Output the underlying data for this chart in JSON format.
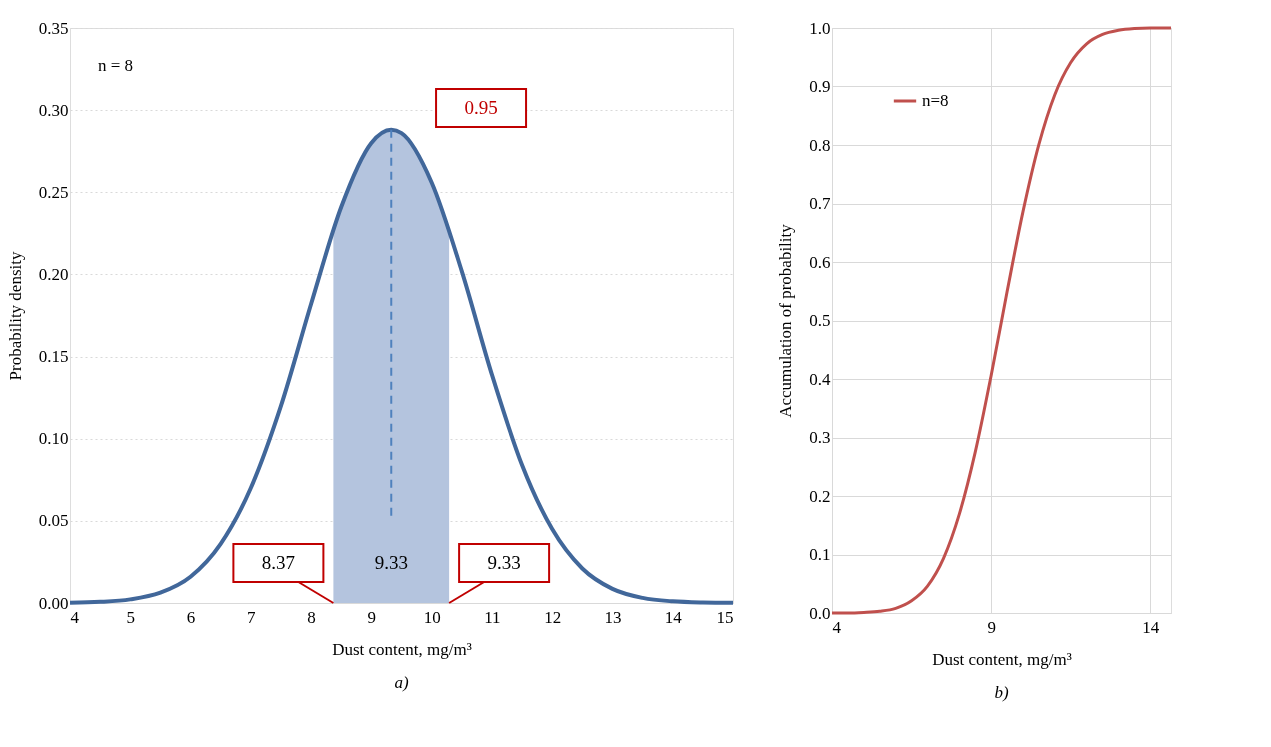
{
  "chart_data": [
    {
      "type": "line",
      "xlabel": "Dust content, mg/m³",
      "ylabel": "Probability density",
      "x": [
        4,
        4.5,
        5,
        5.5,
        6,
        6.5,
        7,
        7.5,
        8,
        8.5,
        9,
        9.33,
        9.5,
        10,
        10.5,
        11,
        11.5,
        12,
        12.5,
        13,
        13.5,
        14,
        14.5,
        15
      ],
      "series": [
        {
          "color": "#41679a",
          "values": [
            0.0002,
            0.0007,
            0.0022,
            0.0063,
            0.016,
            0.036,
            0.07,
            0.12,
            0.182,
            0.241,
            0.28,
            0.288,
            0.286,
            0.256,
            0.202,
            0.139,
            0.084,
            0.045,
            0.021,
            0.0086,
            0.0031,
            0.001,
            0.0003,
            0.0001
          ]
        }
      ],
      "xlim": [
        4,
        15
      ],
      "xticks": [
        4,
        5,
        6,
        7,
        8,
        9,
        10,
        11,
        12,
        13,
        14,
        15
      ],
      "ylim": [
        0,
        0.35
      ],
      "yticks": [
        {
          "value": 0,
          "label": "0.00"
        },
        {
          "value": 0.05,
          "label": "0.05"
        },
        {
          "value": 0.1,
          "label": "0.10"
        },
        {
          "value": 0.15,
          "label": "0.15"
        },
        {
          "value": 0.2,
          "label": "0.20"
        },
        {
          "value": 0.25,
          "label": "0.25"
        },
        {
          "value": 0.3,
          "label": "0.30"
        },
        {
          "value": 0.35,
          "label": "0.35"
        }
      ],
      "grid": "y",
      "legend": false,
      "ref_lines": [
        {
          "axis": "x",
          "value": 9.33,
          "color": "#4f81bd",
          "line_style": "dashed"
        }
      ],
      "bands": [
        {
          "axis": "x",
          "from": 8.37,
          "to": 10.29,
          "color": "#b4c4de"
        }
      ],
      "annotations": [
        "n = 8",
        "0.95",
        {
          "text": "8.37",
          "x": 8.37,
          "y": 0
        },
        {
          "text": "9.33",
          "x": 9.33,
          "y": 0
        },
        {
          "text": "9.33",
          "x": 10.29,
          "y": 0
        },
        "a)"
      ]
    },
    {
      "type": "line",
      "xlabel": "Dust content, mg/m³",
      "ylabel": "Accumulation of probability",
      "x": [
        4,
        4.5,
        5,
        5.5,
        6,
        6.5,
        7,
        7.5,
        8,
        8.5,
        9,
        9.5,
        10,
        10.5,
        11,
        11.5,
        12,
        12.5,
        13,
        13.5,
        14,
        14.5,
        14.65
      ],
      "series": [
        {
          "name": "n=8",
          "color": "#c0504d",
          "values": [
            0,
            0,
            0.001,
            0.003,
            0.008,
            0.021,
            0.046,
            0.093,
            0.169,
            0.275,
            0.406,
            0.549,
            0.686,
            0.801,
            0.886,
            0.941,
            0.973,
            0.989,
            0.996,
            0.999,
            1,
            1,
            1
          ]
        }
      ],
      "xlim": [
        4,
        14.65
      ],
      "xticks": [
        4,
        9,
        14
      ],
      "ylim": [
        0,
        1
      ],
      "yticks": [
        {
          "value": 0,
          "label": "0.0"
        },
        0.1,
        0.2,
        0.3,
        0.4,
        0.5,
        0.6,
        0.7,
        0.8,
        0.9,
        {
          "value": 1,
          "label": "1.0"
        }
      ],
      "grid": true,
      "legend": "top left",
      "annotations": [
        "b)"
      ]
    }
  ]
}
